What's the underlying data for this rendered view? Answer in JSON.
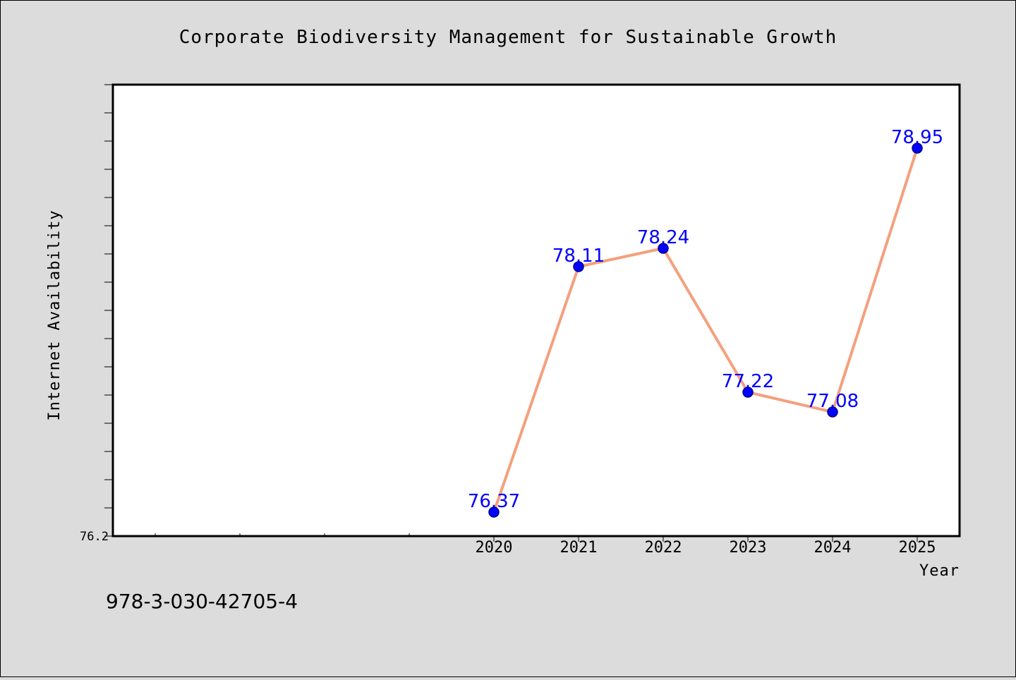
{
  "chart_data": {
    "type": "line",
    "title": "Corporate Biodiversity Management for Sustainable Growth",
    "xlabel": "Year",
    "ylabel": "Internet Availability",
    "x": [
      "2020",
      "2021",
      "2022",
      "2023",
      "2024",
      "2025"
    ],
    "series": [
      {
        "values": [
          76.37,
          78.11,
          78.24,
          77.22,
          77.08,
          78.95
        ]
      }
    ],
    "data_labels": [
      "76.37",
      "78.11",
      "78.24",
      "77.22",
      "77.08",
      "78.95"
    ],
    "ylim": [
      76.2,
      79.4
    ],
    "xlim": [
      2015.5,
      2025.5
    ],
    "y_tick_label": "76.2",
    "y_minor_step": 0.2,
    "x_minor_ticks": [
      2016,
      2017,
      2018,
      2019
    ],
    "grid": false,
    "legend": "none",
    "colors": {
      "line": "#f4a07e",
      "marker_fill": "#0000ff",
      "marker_edge": "#00008b",
      "data_label": "#0000ff",
      "plot_background": "#ffffff",
      "figure_background": "#dcdcdc"
    }
  },
  "footer": {
    "isbn": "978-3-030-42705-4"
  }
}
